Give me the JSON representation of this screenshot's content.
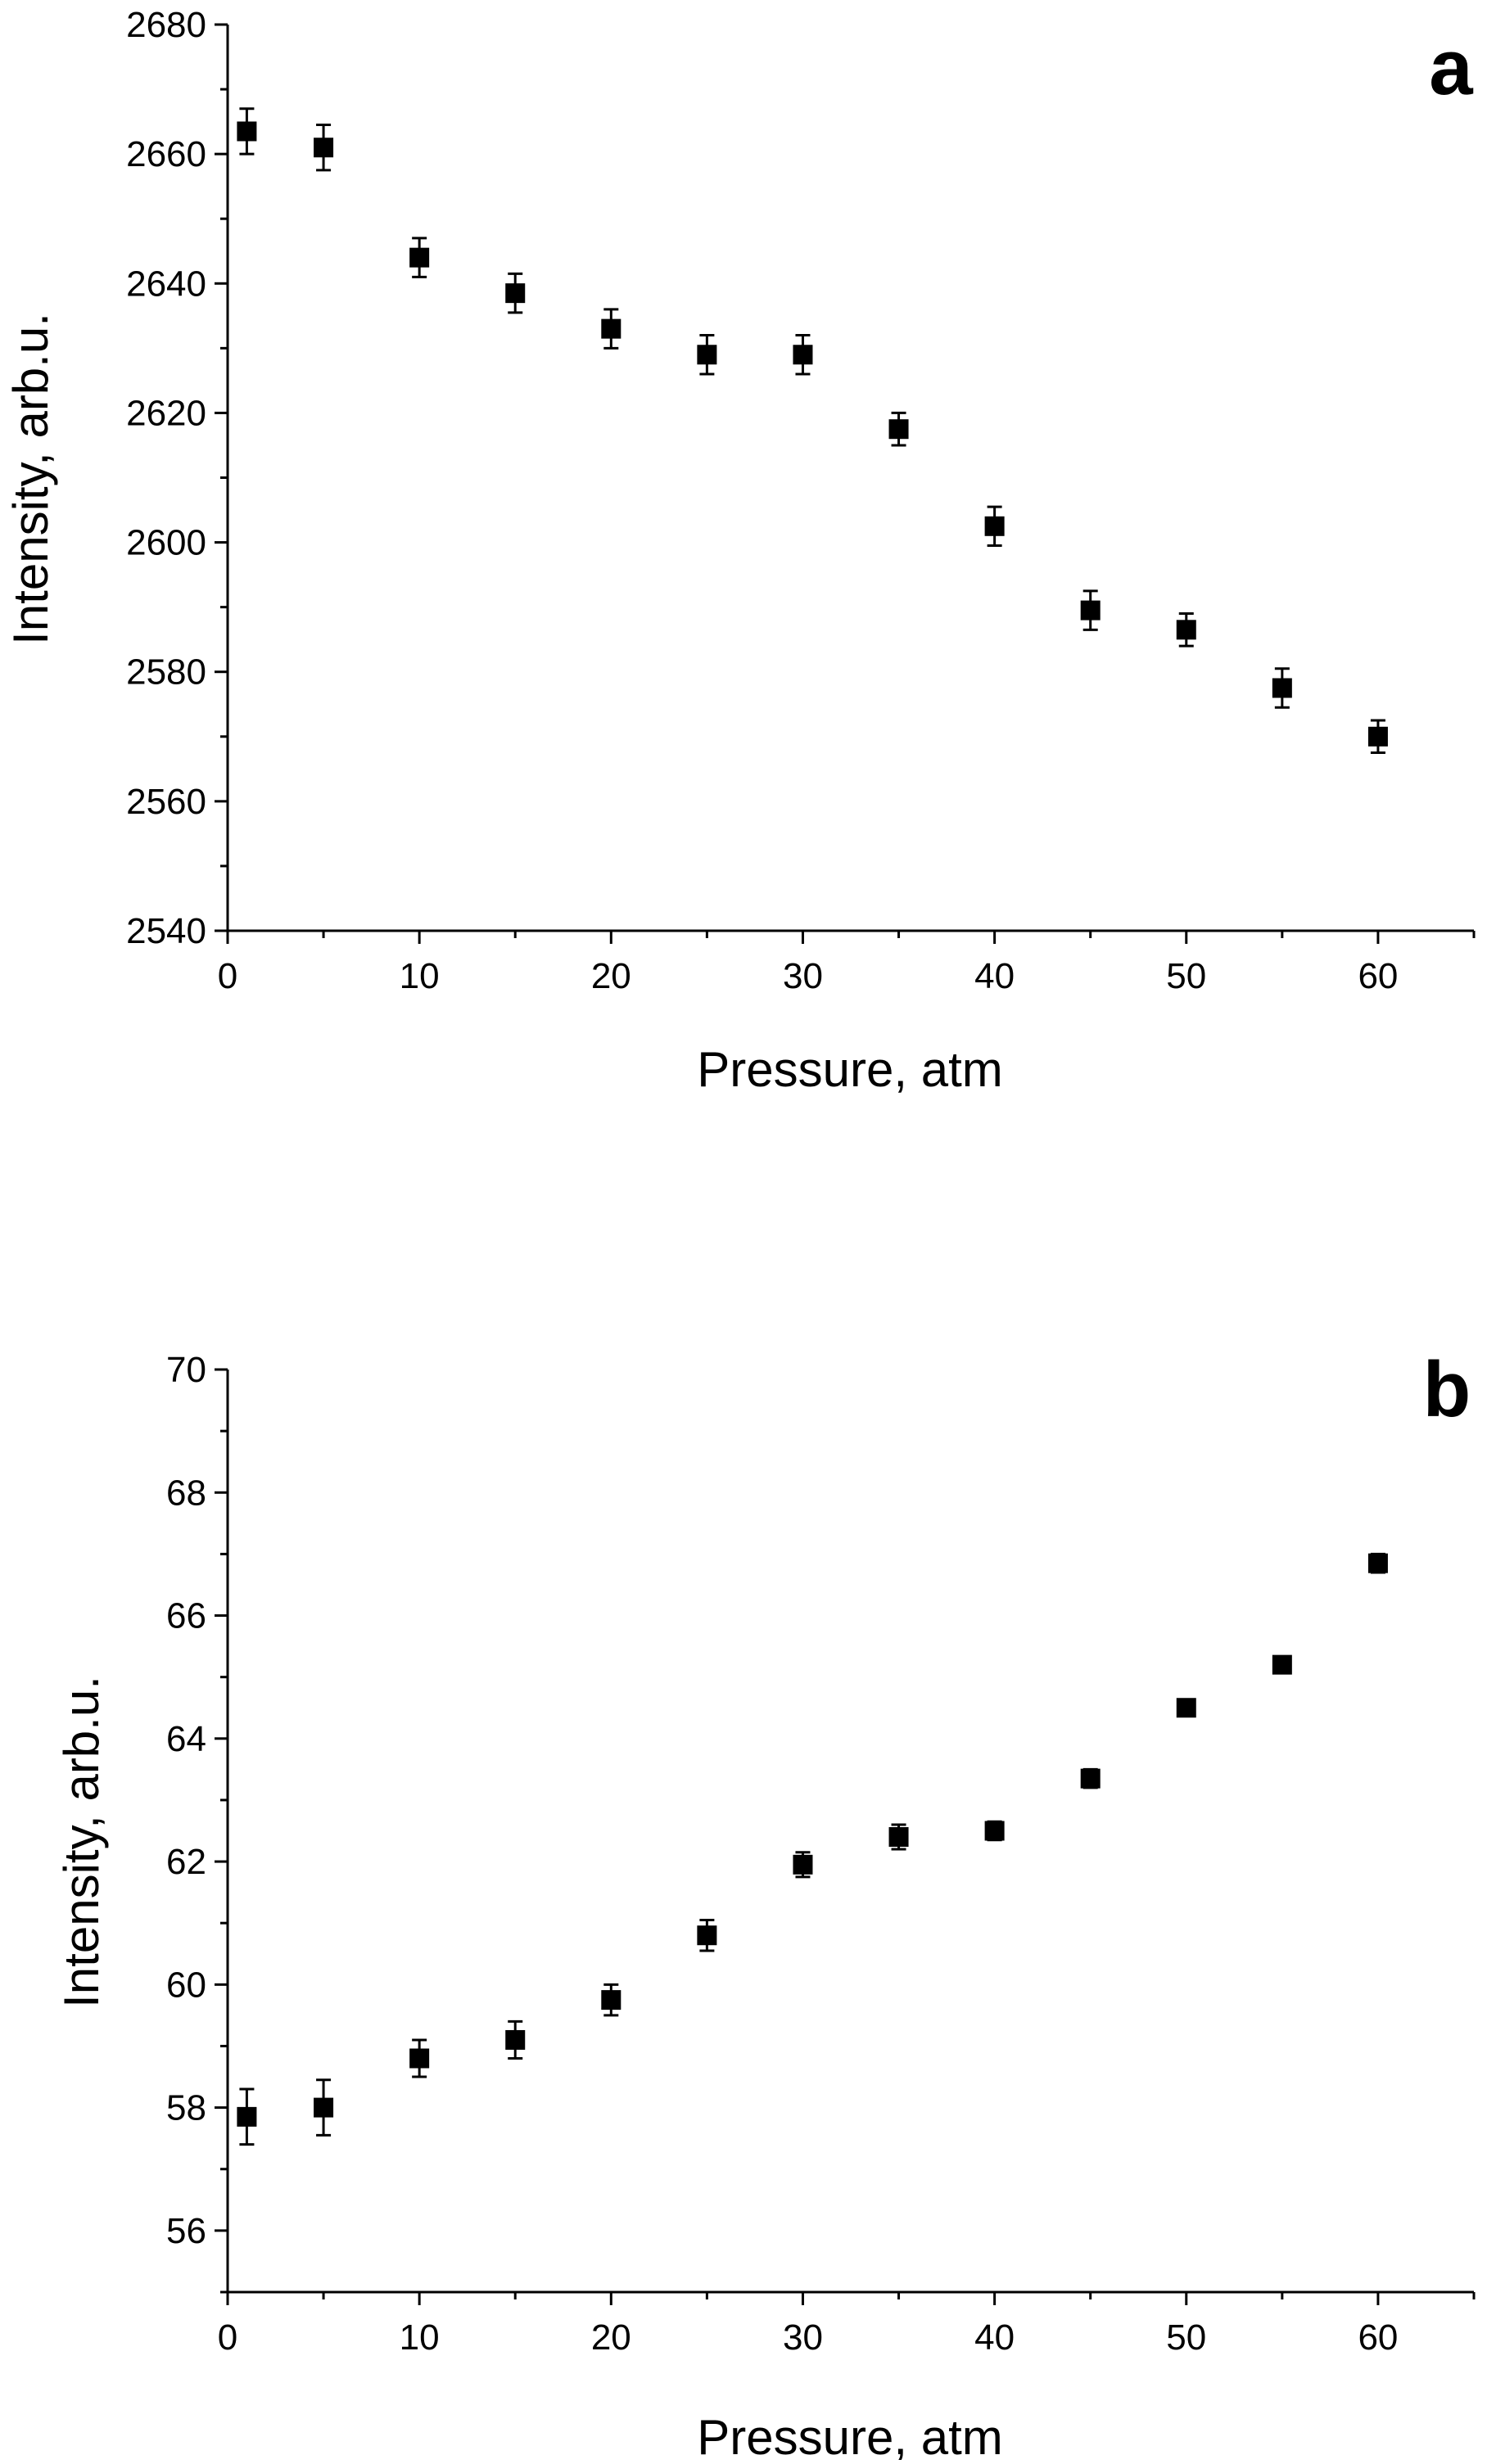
{
  "chart_data": [
    {
      "type": "scatter",
      "panel_label": "a",
      "title": "",
      "xlabel": "Pressure, atm",
      "ylabel": "Intensity, arb.u.",
      "xlim": [
        0,
        65
      ],
      "ylim": [
        2540,
        2680
      ],
      "x_ticks": [
        "0",
        "10",
        "20",
        "30",
        "40",
        "50",
        "60"
      ],
      "y_ticks": [
        "2540",
        "2560",
        "2580",
        "2600",
        "2620",
        "2640",
        "2660",
        "2680"
      ],
      "marker": "square",
      "series": [
        {
          "name": "Intensity",
          "x": [
            1,
            5,
            10,
            15,
            20,
            25,
            30,
            35,
            40,
            45,
            50,
            55,
            60
          ],
          "y": [
            2663.5,
            2661,
            2644,
            2638.5,
            2633,
            2629,
            2629,
            2617.5,
            2602.5,
            2589.5,
            2586.5,
            2577.5,
            2570
          ],
          "err": [
            3.5,
            3.5,
            3,
            3,
            3,
            3,
            3,
            2.5,
            3,
            3,
            2.5,
            3,
            2.5
          ]
        }
      ]
    },
    {
      "type": "scatter",
      "panel_label": "b",
      "title": "",
      "xlabel": "Pressure, atm",
      "ylabel": "Intensity, arb.u.",
      "xlim": [
        0,
        65
      ],
      "ylim": [
        55,
        70
      ],
      "x_ticks": [
        "0",
        "10",
        "20",
        "30",
        "40",
        "50",
        "60"
      ],
      "y_ticks": [
        "56",
        "58",
        "60",
        "62",
        "64",
        "66",
        "68",
        "70"
      ],
      "marker": "square",
      "series": [
        {
          "name": "Intensity",
          "x": [
            1,
            5,
            10,
            15,
            20,
            25,
            30,
            35,
            40,
            45,
            50,
            55,
            60
          ],
          "y": [
            57.85,
            58.0,
            58.8,
            59.1,
            59.75,
            60.8,
            61.95,
            62.4,
            62.5,
            63.35,
            64.5,
            65.2,
            66.85
          ],
          "err": [
            0.45,
            0.45,
            0.3,
            0.3,
            0.25,
            0.25,
            0.2,
            0.2,
            0.15,
            0.15,
            0.1,
            0.1,
            0.15
          ]
        }
      ]
    }
  ]
}
